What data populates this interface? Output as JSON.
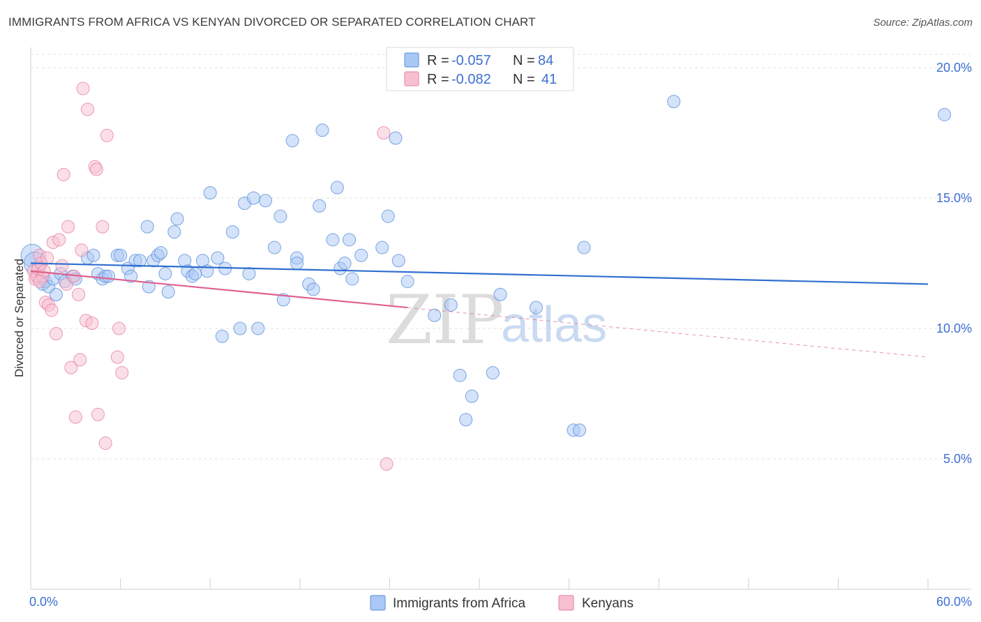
{
  "title": "IMMIGRANTS FROM AFRICA VS KENYAN DIVORCED OR SEPARATED CORRELATION CHART",
  "source": "Source: ZipAtlas.com",
  "watermark": {
    "zip": "ZIP",
    "atlas": "atlas"
  },
  "legend": {
    "rows": [
      {
        "r_label": "R =",
        "r_value": "-0.057",
        "n_label": "N =",
        "n_value": "84",
        "color": "#a9c8f5",
        "stroke": "#5b8fd9"
      },
      {
        "r_label": "R =",
        "r_value": "-0.082",
        "n_label": "N =",
        "n_value": "41",
        "color": "#f7bfd0",
        "stroke": "#e87fa2"
      }
    ]
  },
  "bottom_legend": [
    {
      "label": "Immigrants from Africa",
      "color": "#a9c8f5",
      "stroke": "#5b8fd9"
    },
    {
      "label": "Kenyans",
      "color": "#f7bfd0",
      "stroke": "#e87fa2"
    }
  ],
  "chart_data": {
    "type": "scatter",
    "ylabel": "Divorced or Separated",
    "xlim": [
      0,
      60
    ],
    "ylim": [
      0,
      20.0
    ],
    "x_tick_labels": [
      {
        "value": 0,
        "label": "0.0%"
      },
      {
        "value": 60,
        "label": "60.0%"
      }
    ],
    "y_tick_labels": [
      {
        "value": 5,
        "label": "5.0%"
      },
      {
        "value": 10,
        "label": "10.0%"
      },
      {
        "value": 15,
        "label": "15.0%"
      },
      {
        "value": 20,
        "label": "20.0%"
      }
    ],
    "grid": "horizontal dashed",
    "series": [
      {
        "name": "Immigrants from Africa",
        "color": "#a9c8f5",
        "stroke": "#5b8fd9",
        "trend": {
          "x0": 0,
          "y0": 12.5,
          "x1": 60,
          "y1": 11.7,
          "color": "#2f6fcf"
        },
        "points": [
          [
            0.1,
            12.8
          ],
          [
            0.3,
            12.5
          ],
          [
            0.5,
            12.0
          ],
          [
            0.8,
            11.7
          ],
          [
            1.0,
            11.8
          ],
          [
            1.2,
            11.6
          ],
          [
            1.5,
            11.9
          ],
          [
            1.7,
            11.3
          ],
          [
            2.0,
            12.1
          ],
          [
            2.3,
            11.8
          ],
          [
            2.8,
            12.0
          ],
          [
            3.0,
            11.9
          ],
          [
            3.8,
            12.7
          ],
          [
            4.2,
            12.8
          ],
          [
            4.5,
            12.1
          ],
          [
            4.8,
            11.9
          ],
          [
            5.0,
            12.0
          ],
          [
            5.2,
            12.0
          ],
          [
            5.8,
            12.8
          ],
          [
            6.0,
            12.8
          ],
          [
            6.5,
            12.3
          ],
          [
            6.7,
            12.0
          ],
          [
            7.0,
            12.6
          ],
          [
            7.3,
            12.6
          ],
          [
            7.8,
            13.9
          ],
          [
            7.9,
            11.6
          ],
          [
            8.2,
            12.6
          ],
          [
            8.5,
            12.8
          ],
          [
            8.7,
            12.9
          ],
          [
            9.0,
            12.1
          ],
          [
            9.2,
            11.4
          ],
          [
            9.6,
            13.7
          ],
          [
            9.8,
            14.2
          ],
          [
            10.3,
            12.6
          ],
          [
            10.5,
            12.2
          ],
          [
            10.8,
            12.0
          ],
          [
            11.0,
            12.1
          ],
          [
            11.5,
            12.6
          ],
          [
            11.8,
            12.2
          ],
          [
            12.0,
            15.2
          ],
          [
            12.5,
            12.7
          ],
          [
            12.8,
            9.7
          ],
          [
            13.0,
            12.3
          ],
          [
            13.5,
            13.7
          ],
          [
            14.0,
            10.0
          ],
          [
            14.3,
            14.8
          ],
          [
            14.6,
            12.1
          ],
          [
            14.9,
            15.0
          ],
          [
            15.2,
            10.0
          ],
          [
            15.7,
            14.9
          ],
          [
            16.3,
            13.1
          ],
          [
            16.7,
            14.3
          ],
          [
            16.9,
            11.1
          ],
          [
            17.5,
            17.2
          ],
          [
            17.8,
            12.7
          ],
          [
            17.8,
            12.5
          ],
          [
            18.6,
            11.7
          ],
          [
            18.9,
            11.5
          ],
          [
            19.3,
            14.7
          ],
          [
            19.5,
            17.6
          ],
          [
            20.2,
            13.4
          ],
          [
            20.5,
            15.4
          ],
          [
            20.7,
            12.3
          ],
          [
            21.0,
            12.5
          ],
          [
            21.3,
            13.4
          ],
          [
            21.5,
            11.9
          ],
          [
            22.1,
            12.8
          ],
          [
            23.5,
            13.1
          ],
          [
            23.9,
            14.3
          ],
          [
            24.6,
            12.6
          ],
          [
            24.4,
            17.3
          ],
          [
            25.2,
            11.8
          ],
          [
            27.0,
            10.5
          ],
          [
            28.1,
            10.9
          ],
          [
            28.7,
            8.2
          ],
          [
            29.1,
            6.5
          ],
          [
            29.5,
            7.4
          ],
          [
            30.9,
            8.3
          ],
          [
            31.4,
            11.3
          ],
          [
            33.8,
            10.8
          ],
          [
            36.3,
            6.1
          ],
          [
            36.7,
            6.1
          ],
          [
            37.0,
            13.1
          ],
          [
            43.0,
            18.7
          ],
          [
            61.1,
            18.2
          ]
        ]
      },
      {
        "name": "Kenyans",
        "color": "#f7bfd0",
        "stroke": "#e87fa2",
        "trend": {
          "x0": 0,
          "y0": 12.2,
          "x1": 25.2,
          "y1": 10.8,
          "color": "#e0608f"
        },
        "trend_extension": {
          "x0": 25.2,
          "y0": 10.8,
          "x1": 60,
          "y1": 8.9
        },
        "points": [
          [
            0.2,
            12.2
          ],
          [
            0.3,
            11.9
          ],
          [
            0.4,
            12.0
          ],
          [
            0.5,
            12.3
          ],
          [
            0.6,
            12.8
          ],
          [
            0.7,
            12.5
          ],
          [
            0.8,
            12.0
          ],
          [
            0.9,
            12.2
          ],
          [
            1.0,
            11.0
          ],
          [
            1.2,
            10.9
          ],
          [
            1.4,
            10.7
          ],
          [
            1.5,
            13.3
          ],
          [
            1.7,
            9.8
          ],
          [
            1.9,
            13.4
          ],
          [
            2.2,
            15.9
          ],
          [
            2.4,
            11.7
          ],
          [
            2.5,
            13.9
          ],
          [
            2.7,
            8.5
          ],
          [
            2.9,
            12.0
          ],
          [
            3.0,
            6.6
          ],
          [
            3.2,
            11.3
          ],
          [
            3.3,
            8.8
          ],
          [
            3.4,
            13.0
          ],
          [
            3.5,
            19.2
          ],
          [
            3.7,
            10.3
          ],
          [
            3.8,
            18.4
          ],
          [
            4.1,
            10.2
          ],
          [
            4.3,
            16.2
          ],
          [
            4.4,
            16.1
          ],
          [
            4.5,
            6.7
          ],
          [
            4.8,
            13.9
          ],
          [
            5.0,
            5.6
          ],
          [
            5.1,
            17.4
          ],
          [
            5.8,
            8.9
          ],
          [
            6.1,
            8.3
          ],
          [
            5.9,
            10.0
          ],
          [
            23.6,
            17.5
          ],
          [
            23.8,
            4.8
          ],
          [
            1.1,
            12.7
          ],
          [
            0.6,
            11.8
          ],
          [
            2.1,
            12.4
          ]
        ]
      }
    ]
  }
}
